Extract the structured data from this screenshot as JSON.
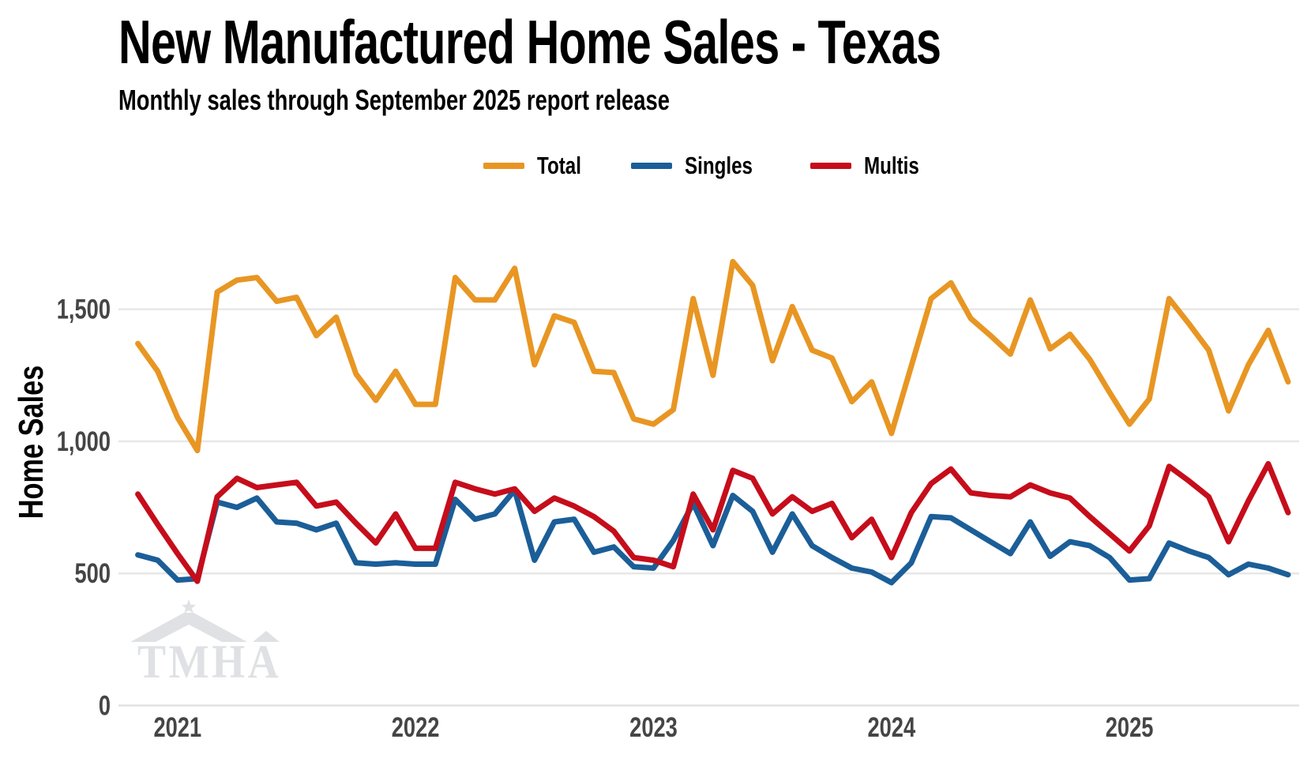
{
  "header": {
    "title": "New Manufactured Home Sales - Texas",
    "subtitle": "Monthly sales through September 2025 report release"
  },
  "watermark": {
    "text": "TMHA"
  },
  "chart_data": {
    "type": "line",
    "title": "New Manufactured Home Sales - Texas",
    "subtitle": "Monthly sales through September 2025 report release",
    "xlabel": "",
    "ylabel": "Home Sales",
    "ylim": [
      0,
      1790
    ],
    "grid": "horizontal",
    "legend_position": "top-center",
    "grid_color": "#E7E7E7",
    "axis_line_color": "#E2E2E2",
    "tick_color": "#454545",
    "watermark_color": "#DFE1E4",
    "yticks": [
      {
        "value": 0,
        "label": "0"
      },
      {
        "value": 500,
        "label": "500"
      },
      {
        "value": 1000,
        "label": "1,000"
      },
      {
        "value": 1500,
        "label": "1,500"
      }
    ],
    "xticks": [
      {
        "label": "2021",
        "month_index": 2
      },
      {
        "label": "2022",
        "month_index": 14
      },
      {
        "label": "2023",
        "month_index": 26
      },
      {
        "label": "2024",
        "month_index": 38
      },
      {
        "label": "2025",
        "month_index": 50
      }
    ],
    "x": [
      "Nov 2020",
      "Dec 2020",
      "Jan 2021",
      "Feb 2021",
      "Mar 2021",
      "Apr 2021",
      "May 2021",
      "Jun 2021",
      "Jul 2021",
      "Aug 2021",
      "Sep 2021",
      "Oct 2021",
      "Nov 2021",
      "Dec 2021",
      "Jan 2022",
      "Feb 2022",
      "Mar 2022",
      "Apr 2022",
      "May 2022",
      "Jun 2022",
      "Jul 2022",
      "Aug 2022",
      "Sep 2022",
      "Oct 2022",
      "Nov 2022",
      "Dec 2022",
      "Jan 2023",
      "Feb 2023",
      "Mar 2023",
      "Apr 2023",
      "May 2023",
      "Jun 2023",
      "Jul 2023",
      "Aug 2023",
      "Sep 2023",
      "Oct 2023",
      "Nov 2023",
      "Dec 2023",
      "Jan 2024",
      "Feb 2024",
      "Mar 2024",
      "Apr 2024",
      "May 2024",
      "Jun 2024",
      "Jul 2024",
      "Aug 2024",
      "Sep 2024",
      "Oct 2024",
      "Nov 2024",
      "Dec 2024",
      "Jan 2025",
      "Feb 2025",
      "Mar 2025",
      "Apr 2025",
      "May 2025",
      "Jun 2025",
      "Jul 2025",
      "Aug 2025",
      "Sep 2025"
    ],
    "series": [
      {
        "name": "Total",
        "color": "#E89623",
        "values": [
          1370,
          1265,
          1090,
          965,
          1565,
          1610,
          1620,
          1530,
          1545,
          1400,
          1470,
          1255,
          1155,
          1265,
          1140,
          1140,
          1620,
          1535,
          1535,
          1655,
          1290,
          1475,
          1450,
          1265,
          1260,
          1085,
          1065,
          1120,
          1540,
          1250,
          1680,
          1590,
          1305,
          1510,
          1345,
          1315,
          1150,
          1225,
          1030,
          1285,
          1540,
          1600,
          1465,
          1400,
          1330,
          1535,
          1350,
          1405,
          1310,
          1185,
          1065,
          1160,
          1540,
          1445,
          1345,
          1115,
          1290,
          1420,
          1225
        ]
      },
      {
        "name": "Singles",
        "color": "#1B5E98",
        "values": [
          570,
          550,
          475,
          480,
          770,
          750,
          785,
          695,
          690,
          665,
          690,
          540,
          535,
          540,
          535,
          535,
          780,
          705,
          725,
          815,
          550,
          695,
          705,
          580,
          600,
          525,
          520,
          625,
          765,
          605,
          795,
          735,
          580,
          725,
          605,
          560,
          520,
          505,
          465,
          540,
          715,
          710,
          665,
          620,
          575,
          695,
          565,
          620,
          605,
          560,
          475,
          480,
          615,
          585,
          560,
          495,
          535,
          520,
          495
        ]
      },
      {
        "name": "Multis",
        "color": "#C60D1B",
        "values": [
          800,
          685,
          575,
          470,
          790,
          860,
          825,
          835,
          845,
          755,
          770,
          690,
          615,
          725,
          595,
          595,
          845,
          820,
          800,
          820,
          735,
          785,
          755,
          715,
          660,
          560,
          550,
          525,
          800,
          665,
          890,
          860,
          725,
          790,
          735,
          765,
          635,
          705,
          560,
          730,
          840,
          895,
          805,
          795,
          790,
          835,
          805,
          785,
          715,
          650,
          585,
          680,
          905,
          850,
          790,
          620,
          775,
          915,
          730
        ]
      }
    ]
  }
}
